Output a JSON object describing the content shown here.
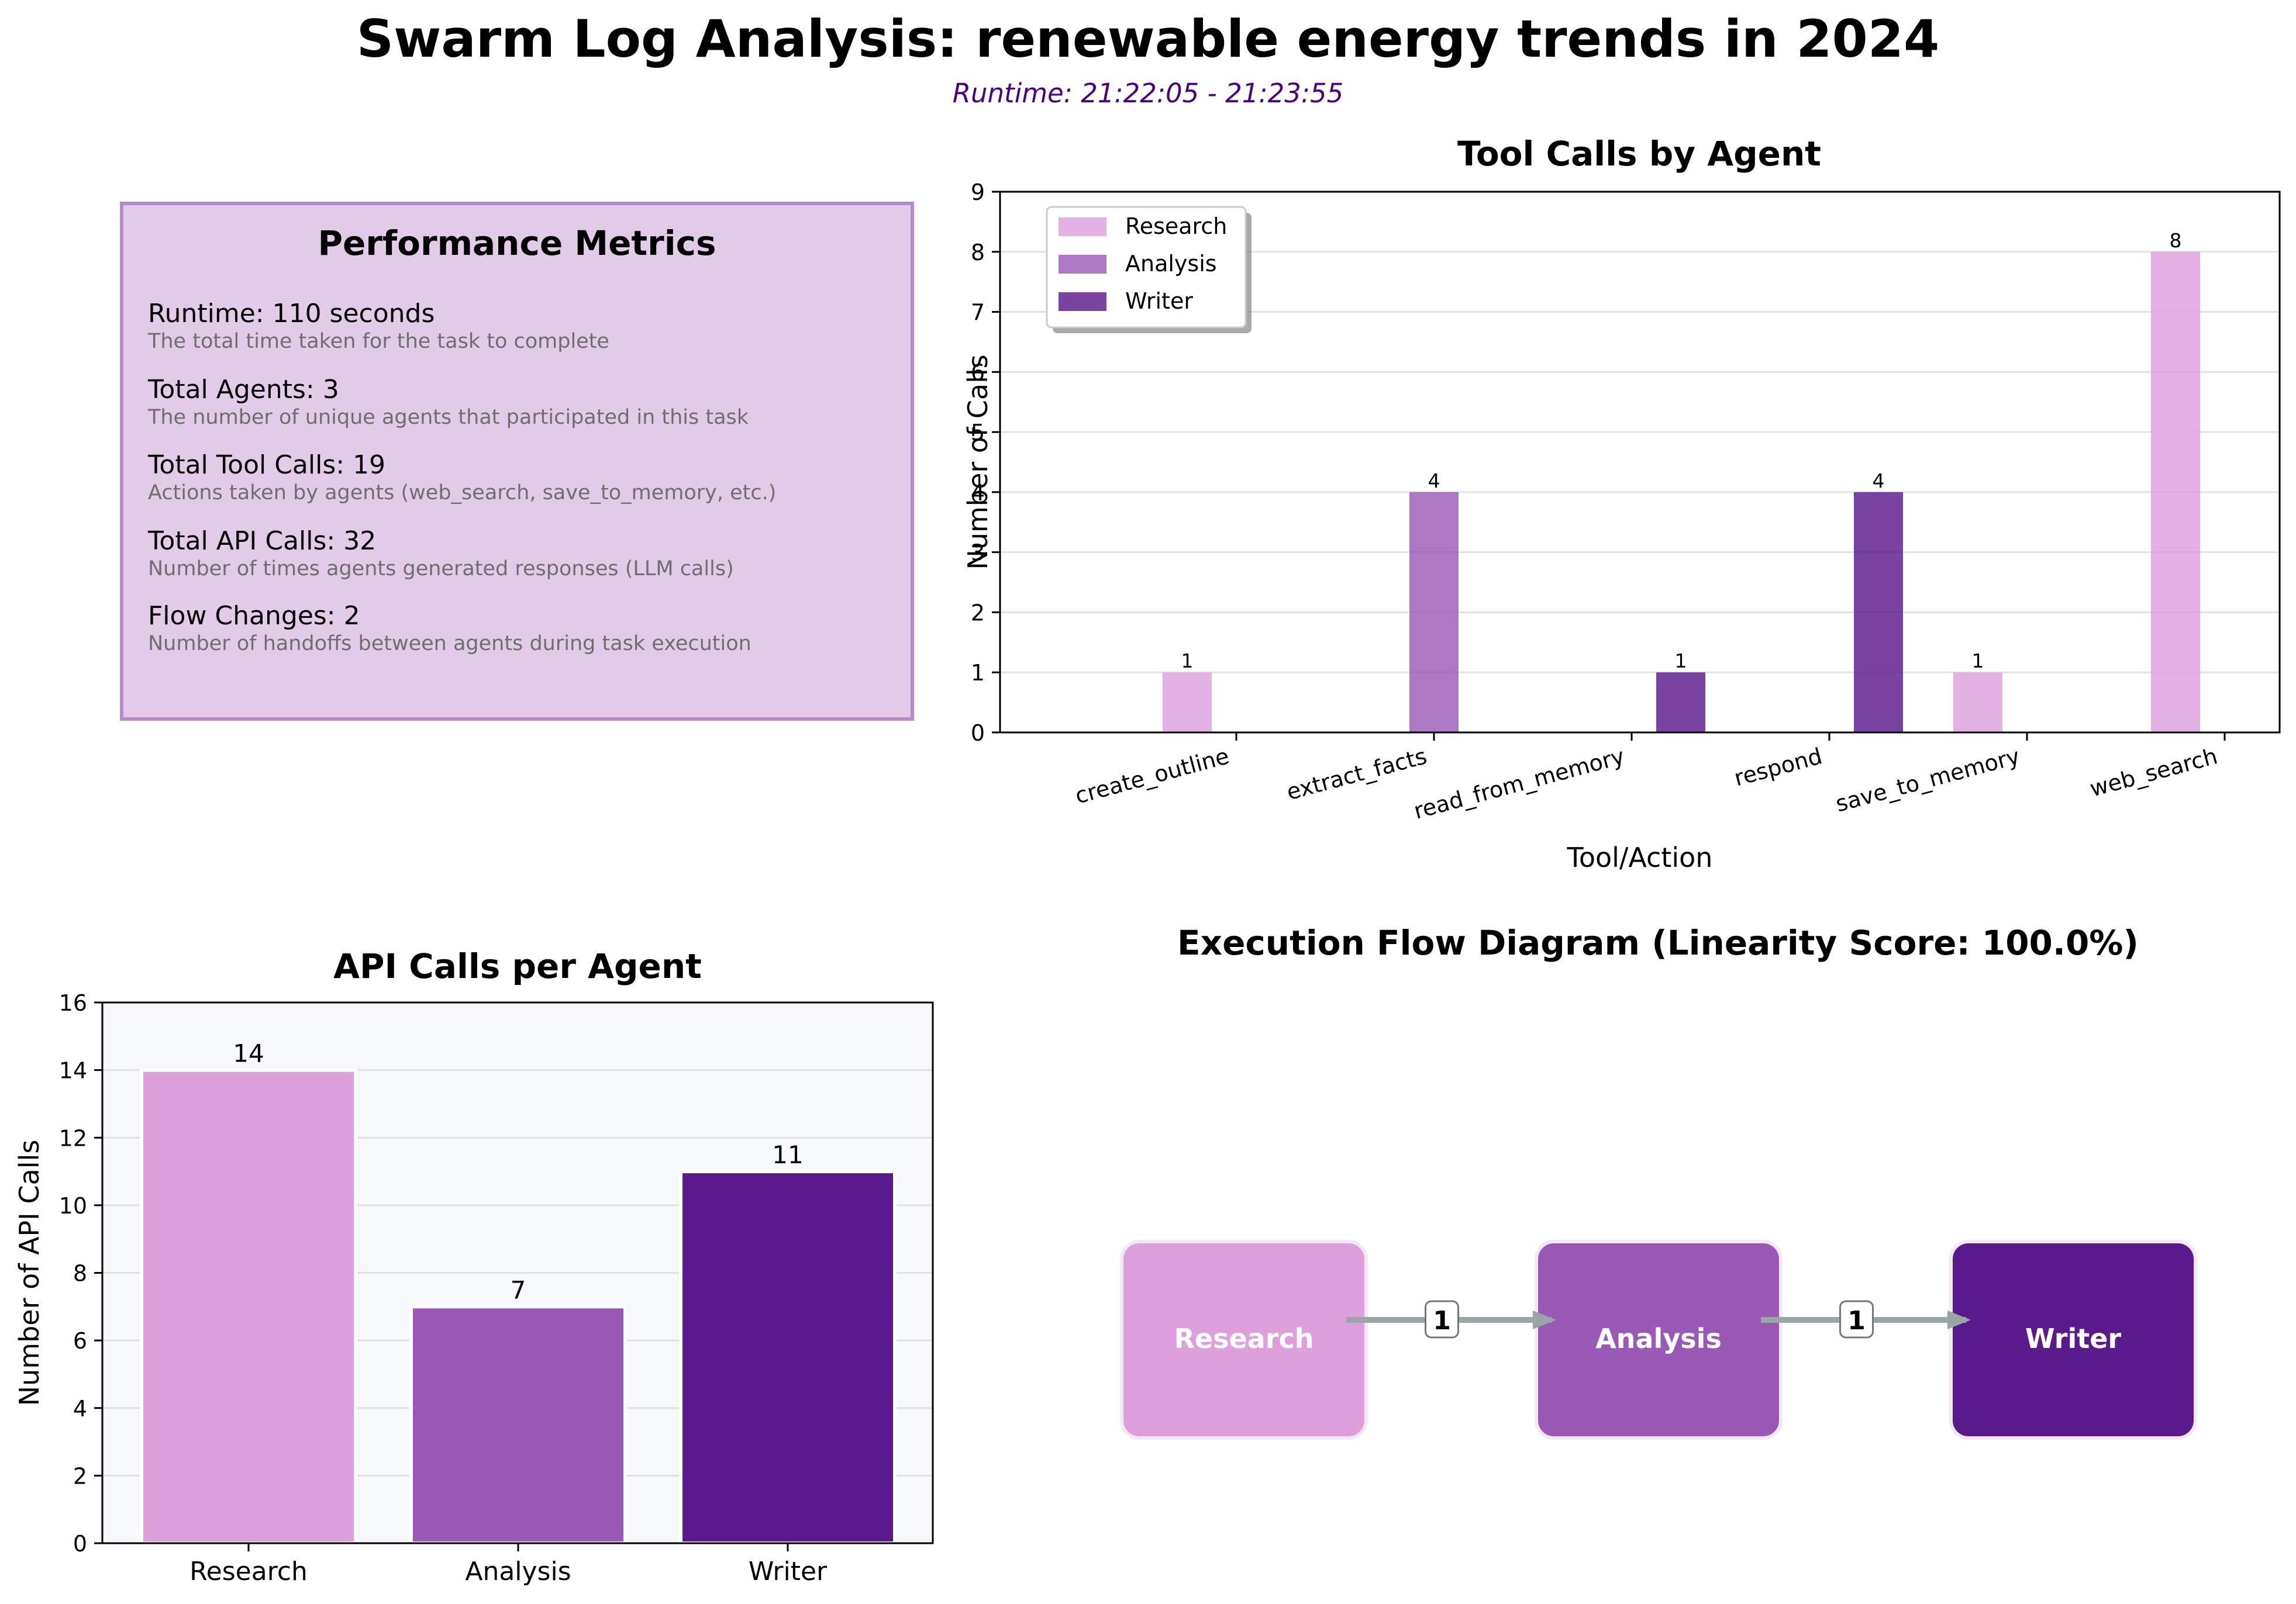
{
  "header": {
    "title": "Swarm Log Analysis: renewable energy trends in 2024",
    "subtitle": "Runtime: 21:22:05 - 21:23:55"
  },
  "metrics": {
    "title": "Performance Metrics",
    "items": [
      {
        "label": "Runtime: 110 seconds",
        "desc": "The total time taken for the task to complete"
      },
      {
        "label": "Total Agents: 3",
        "desc": "The number of unique agents that participated in this task"
      },
      {
        "label": "Total Tool Calls: 19",
        "desc": "Actions taken by agents (web_search, save_to_memory, etc.)"
      },
      {
        "label": "Total API Calls: 32",
        "desc": "Number of times agents generated responses (LLM calls)"
      },
      {
        "label": "Flow Changes: 2",
        "desc": "Number of handoffs between agents during task execution"
      }
    ]
  },
  "colors": {
    "Research": "#dda0dd",
    "Analysis": "#9b59b6",
    "Writer": "#5b1a8c",
    "arrow": "#9aa5a6"
  },
  "chart_data": [
    {
      "type": "bar",
      "title": "Tool Calls by Agent",
      "xlabel": "Tool/Action",
      "ylabel": "Number of Calls",
      "categories": [
        "create_outline",
        "extract_facts",
        "read_from_memory",
        "respond",
        "save_to_memory",
        "web_search"
      ],
      "ylim": [
        0,
        9
      ],
      "yticks": [
        0,
        1,
        2,
        3,
        4,
        5,
        6,
        7,
        8,
        9
      ],
      "grid": true,
      "legend": "top-left",
      "series": [
        {
          "name": "Research",
          "values": [
            1,
            0,
            0,
            0,
            1,
            8
          ]
        },
        {
          "name": "Analysis",
          "values": [
            0,
            4,
            0,
            0,
            0,
            0
          ]
        },
        {
          "name": "Writer",
          "values": [
            0,
            0,
            1,
            4,
            0,
            0
          ]
        }
      ]
    },
    {
      "type": "bar",
      "title": "API Calls per Agent",
      "xlabel": "",
      "ylabel": "Number of API Calls",
      "categories": [
        "Research",
        "Analysis",
        "Writer"
      ],
      "values": [
        14,
        7,
        11
      ],
      "ylim": [
        0,
        16
      ],
      "yticks": [
        0,
        2,
        4,
        6,
        8,
        10,
        12,
        14,
        16
      ],
      "grid": true
    }
  ],
  "flow": {
    "title": "Execution Flow Diagram  (Linearity Score: 100.0%)",
    "nodes": [
      "Research",
      "Analysis",
      "Writer"
    ],
    "edges": [
      {
        "from": "Research",
        "to": "Analysis",
        "label": "1"
      },
      {
        "from": "Analysis",
        "to": "Writer",
        "label": "1"
      }
    ]
  }
}
